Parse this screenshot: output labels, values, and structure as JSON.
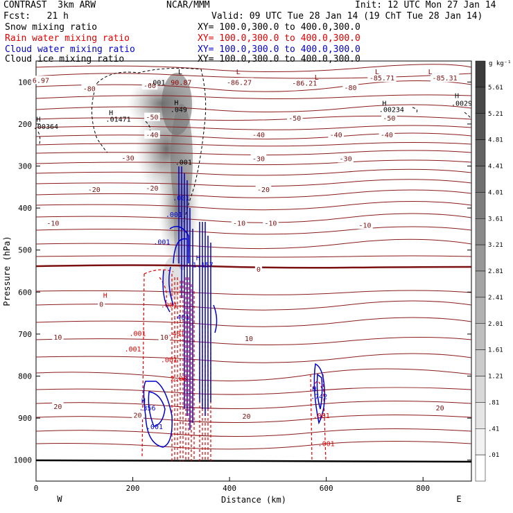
{
  "header": {
    "title_left": "CONTRAST  3km ARW",
    "title_center": "NCAR/MMM",
    "init": "Init: 12 UTC Mon 27 Jan 14",
    "fcst": "Fcst:   21 h",
    "valid": "Valid: 09 UTC Tue 28 Jan 14 (19 ChT Tue 28 Jan 14)",
    "fields": [
      {
        "name": "Snow mixing ratio",
        "xy": "XY= 100.0,300.0 to 400.0,300.0",
        "color": "#000000"
      },
      {
        "name": "Rain water mixing ratio",
        "xy": "XY= 100.0,300.0 to 400.0,300.0",
        "color": "#e00000"
      },
      {
        "name": "Cloud water mixing ratio",
        "xy": "XY= 100.0,300.0 to 400.0,300.0",
        "color": "#0000cc"
      },
      {
        "name": "Cloud ice mixing ratio",
        "xy": "XY= 100.0,300.0 to 400.0,300.0",
        "color": "#000000"
      }
    ]
  },
  "colorbar": {
    "unit": "g kg⁻¹",
    "labels": [
      "5.61",
      "5.21",
      "4.81",
      "4.41",
      "4.01",
      "3.61",
      "3.21",
      "2.81",
      "2.41",
      "2.01",
      "1.61",
      "1.21",
      ".81",
      ".41",
      ".01"
    ]
  },
  "chart_data": {
    "type": "contour",
    "xlabel": "Distance (km)",
    "ylabel": "Pressure (hPa)",
    "xlim": [
      0,
      900
    ],
    "ylim": [
      1050,
      50
    ],
    "xticks": [
      0,
      200,
      400,
      600,
      800
    ],
    "yticks": [
      100,
      200,
      300,
      400,
      500,
      600,
      700,
      800,
      900,
      1000
    ],
    "x_ends": {
      "left": "W",
      "right": "E"
    },
    "temperature_labels": [
      {
        "text": "6.97",
        "x": 10,
        "p": 95
      },
      {
        "text": "-80",
        "x": 110,
        "p": 115
      },
      {
        "text": "-60",
        "x": 235,
        "p": 108
      },
      {
        "text": "-86.27",
        "x": 420,
        "p": 100
      },
      {
        "text": "-86.21",
        "x": 555,
        "p": 102
      },
      {
        "text": "-85.71",
        "x": 715,
        "p": 90
      },
      {
        "text": "-85.31",
        "x": 845,
        "p": 90
      },
      {
        "text": "-80",
        "x": 650,
        "p": 113
      },
      {
        "text": "-50",
        "x": 240,
        "p": 183
      },
      {
        "text": "-50",
        "x": 535,
        "p": 185
      },
      {
        "text": "-50",
        "x": 730,
        "p": 185
      },
      {
        "text": "-40",
        "x": 240,
        "p": 225
      },
      {
        "text": "-40",
        "x": 460,
        "p": 225
      },
      {
        "text": "-40",
        "x": 620,
        "p": 225
      },
      {
        "text": "-40",
        "x": 725,
        "p": 225
      },
      {
        "text": "-30",
        "x": 190,
        "p": 280
      },
      {
        "text": "-30",
        "x": 460,
        "p": 282
      },
      {
        "text": "-30",
        "x": 640,
        "p": 282
      },
      {
        "text": "-20",
        "x": 120,
        "p": 355
      },
      {
        "text": "-20",
        "x": 240,
        "p": 352
      },
      {
        "text": "-20",
        "x": 470,
        "p": 355
      },
      {
        "text": "-10",
        "x": 35,
        "p": 435
      },
      {
        "text": "-10",
        "x": 420,
        "p": 435
      },
      {
        "text": "-10",
        "x": 485,
        "p": 435
      },
      {
        "text": "-10",
        "x": 680,
        "p": 440
      },
      {
        "text": "0",
        "x": 460,
        "p": 545
      },
      {
        "text": "0",
        "x": 135,
        "p": 628
      },
      {
        "text": "10",
        "x": 45,
        "p": 707
      },
      {
        "text": "10",
        "x": 265,
        "p": 707
      },
      {
        "text": "10",
        "x": 440,
        "p": 710
      },
      {
        "text": "20",
        "x": 45,
        "p": 872
      },
      {
        "text": "20",
        "x": 210,
        "p": 892
      },
      {
        "text": "20",
        "x": 435,
        "p": 895
      },
      {
        "text": "20",
        "x": 835,
        "p": 875
      }
    ],
    "extrema_labels": [
      {
        "text": "L",
        "x": 298,
        "p": 75,
        "color": "#000000"
      },
      {
        "text": "90.87",
        "x": 300,
        "p": 100,
        "color": "#8b0000"
      },
      {
        "text": ".001",
        "x": 250,
        "p": 100,
        "color": "#000000"
      },
      {
        "text": "L",
        "x": 418,
        "p": 75,
        "color": "#8b0000"
      },
      {
        "text": "L",
        "x": 580,
        "p": 88,
        "color": "#8b0000"
      },
      {
        "text": "L",
        "x": 705,
        "p": 75,
        "color": "#8b0000"
      },
      {
        "text": "L",
        "x": 815,
        "p": 75,
        "color": "#8b0000"
      },
      {
        "text": "H",
        "x": 870,
        "p": 132,
        "color": "#000000"
      },
      {
        "text": ".0029",
        "x": 880,
        "p": 150,
        "color": "#000000"
      },
      {
        "text": "H",
        "x": 720,
        "p": 150,
        "color": "#000000"
      },
      {
        "text": ".00234",
        "x": 735,
        "p": 165,
        "color": "#000000"
      },
      {
        "text": "H",
        "x": 290,
        "p": 148,
        "color": "#000000"
      },
      {
        "text": ".049",
        "x": 295,
        "p": 165,
        "color": "#000000"
      },
      {
        "text": "H",
        "x": 155,
        "p": 172,
        "color": "#000000"
      },
      {
        "text": ".01471",
        "x": 170,
        "p": 188,
        "color": "#000000"
      },
      {
        "text": "H",
        "x": 5,
        "p": 188,
        "color": "#000000"
      },
      {
        "text": ".00364",
        "x": 20,
        "p": 205,
        "color": "#000000"
      },
      {
        "text": ".001",
        "x": 305,
        "p": 290,
        "color": "#000000"
      },
      {
        "text": ".001",
        "x": 300,
        "p": 375,
        "color": "#0000cc"
      },
      {
        "text": ".001",
        "x": 285,
        "p": 415,
        "color": "#0000cc"
      },
      {
        "text": ".001",
        "x": 260,
        "p": 480,
        "color": "#0000cc"
      },
      {
        "text": "H",
        "x": 335,
        "p": 518,
        "color": "#0000cc"
      },
      {
        "text": "1.157",
        "x": 345,
        "p": 534,
        "color": "#0000cc"
      },
      {
        "text": "H",
        "x": 143,
        "p": 607,
        "color": "#e00000"
      },
      {
        "text": "H",
        "x": 222,
        "p": 858,
        "color": "#0000cc"
      },
      {
        "text": ".356",
        "x": 230,
        "p": 875,
        "color": "#0000cc"
      },
      {
        "text": ".001",
        "x": 245,
        "p": 920,
        "color": "#0000cc"
      },
      {
        "text": "H",
        "x": 575,
        "p": 830,
        "color": "#0000cc"
      },
      {
        "text": ".742",
        "x": 585,
        "p": 848,
        "color": "#0000cc"
      },
      {
        "text": ".001",
        "x": 590,
        "p": 893,
        "color": "#e00000"
      },
      {
        "text": ".001",
        "x": 600,
        "p": 960,
        "color": "#e00000"
      },
      {
        "text": ".001",
        "x": 275,
        "p": 630,
        "color": "#e00000"
      },
      {
        "text": ".401",
        "x": 290,
        "p": 698,
        "color": "#e00000"
      },
      {
        "text": ".001",
        "x": 210,
        "p": 698,
        "color": "#e00000"
      },
      {
        "text": ".001",
        "x": 200,
        "p": 735,
        "color": "#e00000"
      },
      {
        "text": "2.08",
        "x": 295,
        "p": 805,
        "color": "#e00000"
      },
      {
        "text": ".401",
        "x": 300,
        "p": 659,
        "color": "#0000cc"
      },
      {
        "text": ".001",
        "x": 275,
        "p": 760,
        "color": "#e00000"
      }
    ]
  }
}
